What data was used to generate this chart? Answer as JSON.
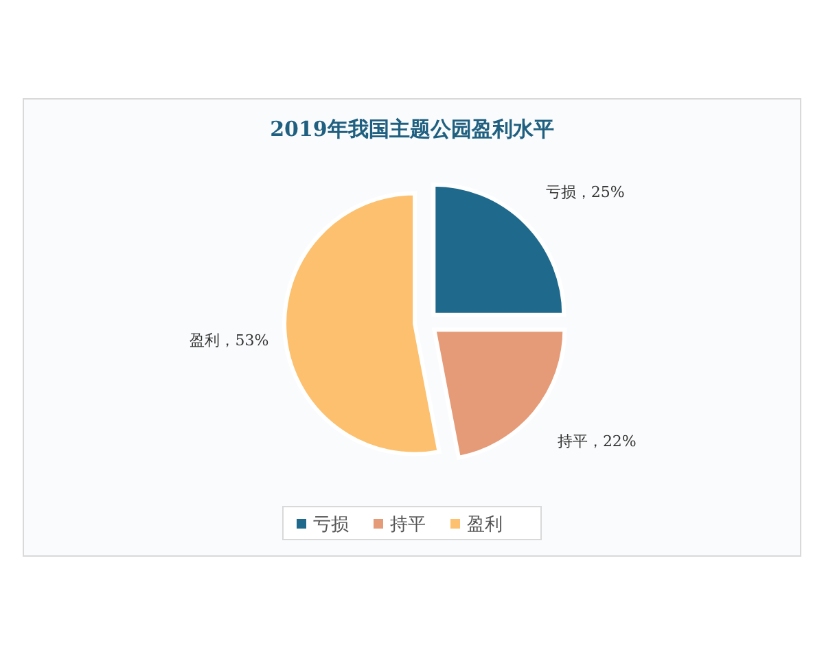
{
  "chart_data": {
    "type": "pie",
    "title": "2019年我国主题公园盈利水平",
    "categories": [
      "亏损",
      "持平",
      "盈利"
    ],
    "values": [
      25,
      22,
      53
    ],
    "colors": [
      "#1f6a8c",
      "#e59b78",
      "#fcc06e"
    ],
    "value_labels": [
      "亏损，25%",
      "持平，22%",
      "盈利，53%"
    ],
    "legend": "bottom"
  }
}
